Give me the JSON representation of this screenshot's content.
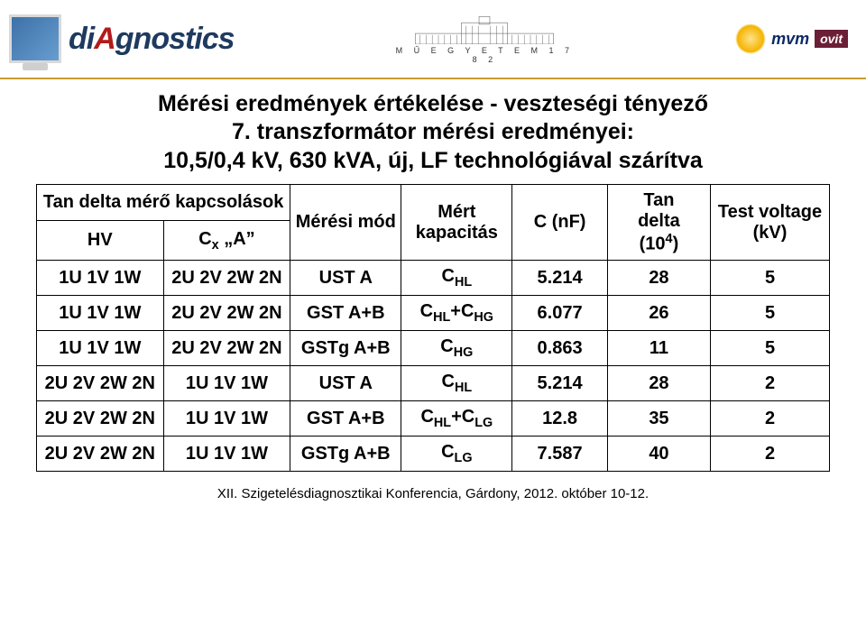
{
  "header": {
    "logo_text_pre": "di",
    "logo_text_accent": "A",
    "logo_text_post": "gnostics",
    "university_caption": "M Ű E G Y E T E M   1 7 8 2",
    "mvm_text": "mvm",
    "mvm_ovit": "ovit"
  },
  "title": {
    "line1": "Mérési eredmények értékelése - veszteségi tényező",
    "line2": "7. transzformátor mérési eredményei:",
    "line3": "10,5/0,4 kV, 630 kVA, új, LF technológiával szárítva"
  },
  "table": {
    "header_span": "Tan delta mérő kapcsolások",
    "hv": "HV",
    "cx_a": "Cₓ „A”",
    "meresi_mod": "Mérési mód",
    "mert_kapacitas": "Mért kapacitás",
    "c_nf": "C (nF)",
    "tan_delta": "Tan delta (10⁴)",
    "test_voltage": "Test voltage (kV)",
    "colors": {
      "border": "#000000",
      "text": "#000000",
      "bg": "#ffffff"
    },
    "col_widths_pct": [
      16,
      16,
      14,
      14,
      12,
      13,
      15
    ],
    "rows": [
      {
        "hv": "1U 1V 1W",
        "cxa": "2U 2V 2W 2N",
        "mode": "UST A",
        "cap": "C_HL",
        "c_nf": "5.214",
        "tan": "28",
        "tv": "5"
      },
      {
        "hv": "1U 1V 1W",
        "cxa": "2U 2V 2W 2N",
        "mode": "GST A+B",
        "cap": "C_HL+C_HG",
        "c_nf": "6.077",
        "tan": "26",
        "tv": "5"
      },
      {
        "hv": "1U 1V 1W",
        "cxa": "2U 2V 2W 2N",
        "mode": "GSTg A+B",
        "cap": "C_HG",
        "c_nf": "0.863",
        "tan": "11",
        "tv": "5"
      },
      {
        "hv": "2U 2V 2W 2N",
        "cxa": "1U 1V 1W",
        "mode": "UST A",
        "cap": "C_HL",
        "c_nf": "5.214",
        "tan": "28",
        "tv": "2"
      },
      {
        "hv": "2U 2V 2W 2N",
        "cxa": "1U 1V 1W",
        "mode": "GST A+B",
        "cap": "C_HL+C_LG",
        "c_nf": "12.8",
        "tan": "35",
        "tv": "2"
      },
      {
        "hv": "2U 2V 2W 2N",
        "cxa": "1U 1V 1W",
        "mode": "GSTg A+B",
        "cap": "C_LG",
        "c_nf": "7.587",
        "tan": "40",
        "tv": "2"
      }
    ]
  },
  "footer": "XII. Szigetelésdiagnosztikai Konferencia, Gárdony, 2012. október 10-12."
}
